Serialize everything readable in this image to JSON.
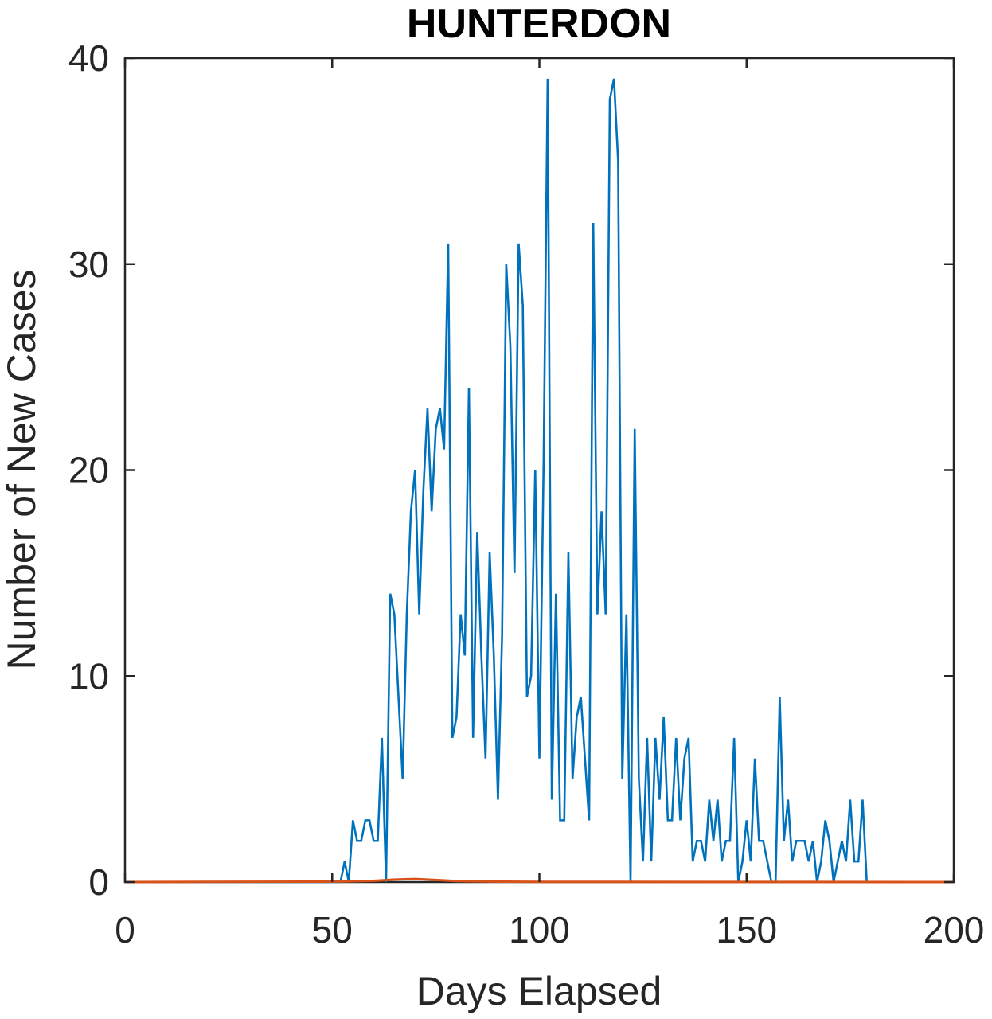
{
  "chart_data": {
    "type": "line",
    "title": "HUNTERDON",
    "xlabel": "Days Elapsed",
    "ylabel": "Number of New Cases",
    "xlim": [
      0,
      200
    ],
    "ylim": [
      0,
      40
    ],
    "xticks": [
      0,
      50,
      100,
      150,
      200
    ],
    "yticks": [
      0,
      10,
      20,
      30,
      40
    ],
    "xtick_labels": [
      "0",
      "50",
      "100",
      "150",
      "200"
    ],
    "ytick_labels": [
      "0",
      "10",
      "20",
      "30",
      "40"
    ],
    "grid": false,
    "series": [
      {
        "color": "#0072BD",
        "x": [
          0,
          52,
          53,
          54,
          55,
          56,
          57,
          58,
          59,
          60,
          61,
          62,
          63,
          64,
          65,
          66,
          67,
          68,
          69,
          70,
          71,
          72,
          73,
          74,
          75,
          76,
          77,
          78,
          79,
          80,
          81,
          82,
          83,
          84,
          85,
          86,
          87,
          88,
          89,
          90,
          91,
          92,
          93,
          94,
          95,
          96,
          97,
          98,
          99,
          100,
          101,
          102,
          103,
          104,
          105,
          106,
          107,
          108,
          109,
          110,
          111,
          112,
          113,
          114,
          115,
          116,
          117,
          118,
          119,
          120,
          121,
          122,
          123,
          124,
          125,
          126,
          127,
          128,
          129,
          130,
          131,
          132,
          133,
          134,
          135,
          136,
          137,
          138,
          139,
          140,
          141,
          142,
          143,
          144,
          145,
          146,
          147,
          148,
          149,
          150,
          151,
          152,
          153,
          154,
          155,
          156,
          157,
          158,
          159,
          160,
          161,
          162,
          163,
          164,
          165,
          166,
          167,
          168,
          169,
          170,
          171,
          172,
          173,
          174,
          175,
          176,
          177,
          178,
          179,
          180
        ],
        "y": [
          0,
          0,
          1,
          0,
          3,
          2,
          2,
          3,
          3,
          2,
          2,
          7,
          0,
          14,
          13,
          9,
          5,
          13,
          18,
          20,
          13,
          19,
          23,
          18,
          22,
          23,
          21,
          31,
          7,
          8,
          13,
          11,
          24,
          7,
          17,
          11,
          6,
          16,
          11,
          4,
          12,
          30,
          26,
          15,
          31,
          28,
          9,
          10,
          20,
          6,
          20,
          39,
          4,
          14,
          3,
          3,
          16,
          5,
          8,
          9,
          6,
          3,
          32,
          13,
          18,
          13,
          38,
          39,
          35,
          5,
          13,
          0,
          22,
          5,
          1,
          7,
          1,
          7,
          4,
          8,
          3,
          3,
          7,
          3,
          6,
          7,
          1,
          2,
          2,
          1,
          4,
          2,
          4,
          1,
          2,
          2,
          7,
          0,
          1,
          3,
          1,
          6,
          2,
          2,
          1,
          0,
          0,
          9,
          2,
          4,
          1,
          2,
          2,
          2,
          1,
          2,
          0,
          1,
          3,
          2,
          0,
          1,
          2,
          1,
          4,
          1,
          1,
          4,
          0,
          0
        ]
      },
      {
        "color": "#D95319",
        "x": [
          0,
          50,
          60,
          65,
          70,
          75,
          80,
          90,
          100,
          200
        ],
        "y": [
          0,
          0.02,
          0.06,
          0.12,
          0.15,
          0.1,
          0.05,
          0.02,
          0.01,
          0
        ]
      }
    ]
  }
}
